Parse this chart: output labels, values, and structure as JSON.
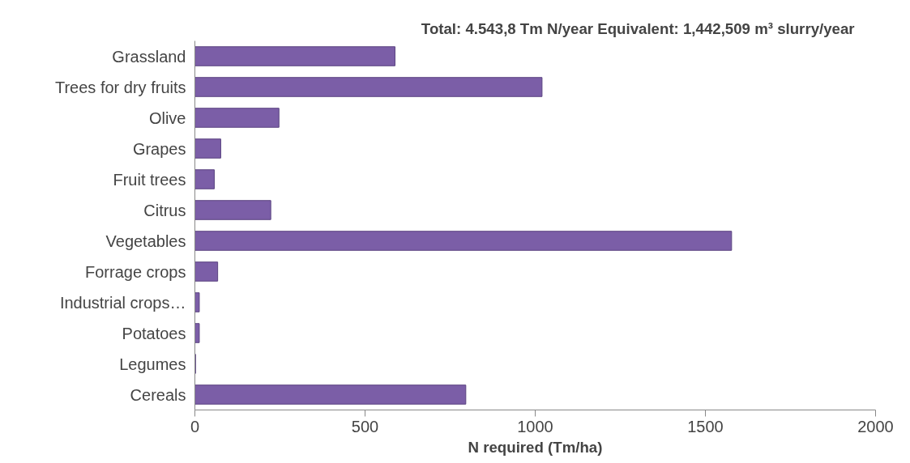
{
  "chart_data": {
    "type": "bar",
    "orientation": "horizontal",
    "title": "Total:  4.543,8 Tm N/year",
    "subtitle": "Equivalent:  1,442,509 m³ slurry/year",
    "xlabel": "N required (Tm/ha)",
    "categories": [
      "Grassland",
      "Trees for dry fruits",
      "Olive",
      "Grapes",
      "Fruit trees",
      "Citrus",
      "Vegetables",
      "Forrage crops",
      "Industrial crops…",
      "Potatoes",
      "Legumes",
      "Cereals"
    ],
    "values": [
      588,
      1020,
      247,
      76,
      57,
      223,
      1577,
      67,
      13,
      13,
      2,
      796
    ],
    "color": "#7b5ea7",
    "xlim": [
      0,
      2000
    ],
    "xticks": [
      0,
      500,
      1000,
      1500,
      2000
    ],
    "grid": false
  }
}
